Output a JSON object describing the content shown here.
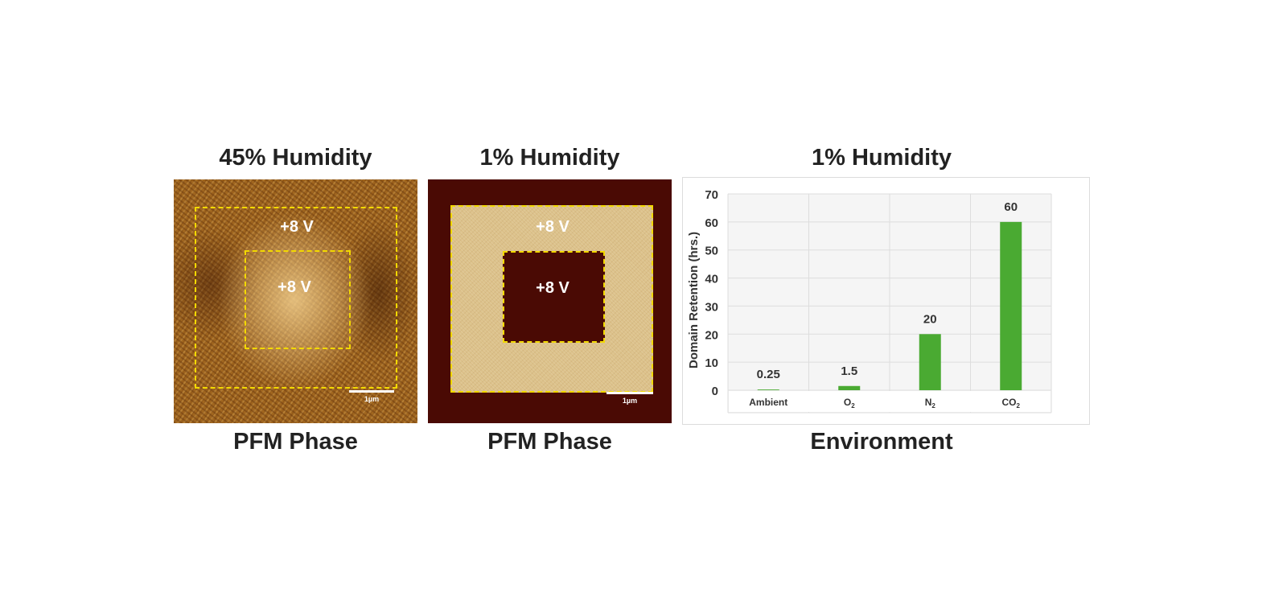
{
  "panels": [
    {
      "title": "45% Humidity",
      "caption": "PFM Phase",
      "outer_label": "+8 V",
      "inner_label": "+8 V",
      "scale_label": "1µm"
    },
    {
      "title": "1% Humidity",
      "caption": "PFM Phase",
      "outer_label": "+8 V",
      "inner_label": "+8 V",
      "scale_label": "1µm"
    }
  ],
  "chart_title": "1% Humidity",
  "colors": {
    "bar": "#4aaa32",
    "dash": "#f2d900",
    "grid": "#dddddd",
    "plot_bg": "#f5f5f5"
  },
  "chart_data": {
    "type": "bar",
    "title": "1% Humidity",
    "xlabel": "Environment",
    "ylabel": "Domain Retention (hrs.)",
    "categories": [
      "Ambient",
      "O2",
      "N2",
      "CO2"
    ],
    "category_display": [
      {
        "main": "Ambient",
        "sub": ""
      },
      {
        "main": "O",
        "sub": "2"
      },
      {
        "main": "N",
        "sub": "2"
      },
      {
        "main": "CO",
        "sub": "2"
      }
    ],
    "values": [
      0.25,
      1.5,
      20,
      60
    ],
    "data_labels": [
      "0.25",
      "1.5",
      "20",
      "60"
    ],
    "ylim": [
      0,
      70
    ],
    "yticks": [
      0,
      10,
      20,
      30,
      40,
      50,
      60,
      70
    ],
    "grid": true,
    "legend": "none"
  }
}
